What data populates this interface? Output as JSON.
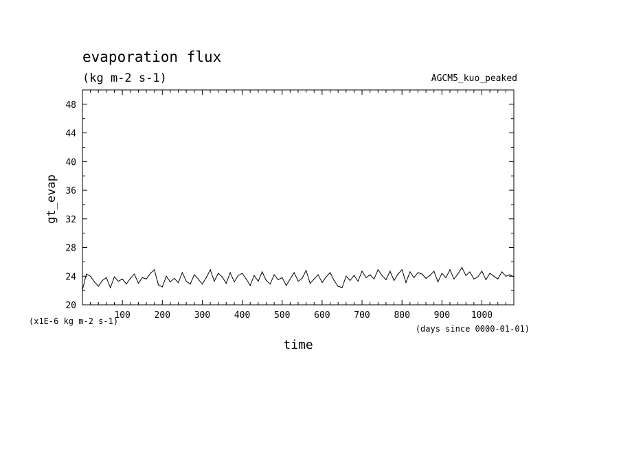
{
  "chart_data": {
    "type": "line",
    "title": "evaporation flux",
    "subtitle": "(kg m-2 s-1)",
    "experiment": "AGCM5_kuo_peaked",
    "xlabel": "time",
    "x_units": "(days since 0000-01-01)",
    "ylabel": "gt_evap",
    "y_units": "(x1E-6 kg m-2 s-1)",
    "xlim": [
      0,
      1080
    ],
    "ylim": [
      20,
      50
    ],
    "xticks": [
      100,
      200,
      300,
      400,
      500,
      600,
      700,
      800,
      900,
      1000
    ],
    "yticks": [
      20,
      24,
      28,
      32,
      36,
      40,
      44,
      48
    ],
    "grid": false,
    "series": [
      {
        "x": [
          0,
          10,
          20,
          30,
          40,
          50,
          60,
          70,
          80,
          90,
          100,
          110,
          120,
          130,
          140,
          150,
          160,
          170,
          180,
          190,
          200,
          210,
          220,
          230,
          240,
          250,
          260,
          270,
          280,
          290,
          300,
          310,
          320,
          330,
          340,
          350,
          360,
          370,
          380,
          390,
          400,
          410,
          420,
          430,
          440,
          450,
          460,
          470,
          480,
          490,
          500,
          510,
          520,
          530,
          540,
          550,
          560,
          570,
          580,
          590,
          600,
          610,
          620,
          630,
          640,
          650,
          660,
          670,
          680,
          690,
          700,
          710,
          720,
          730,
          740,
          750,
          760,
          770,
          780,
          790,
          800,
          810,
          820,
          830,
          840,
          850,
          860,
          870,
          880,
          890,
          900,
          910,
          920,
          930,
          940,
          950,
          960,
          970,
          980,
          990,
          1000,
          1010,
          1020,
          1030,
          1040,
          1050,
          1060,
          1070,
          1080
        ],
        "y": [
          22.1,
          24.3,
          24.0,
          23.2,
          22.6,
          23.4,
          23.8,
          22.4,
          23.9,
          23.3,
          23.6,
          22.9,
          23.7,
          24.3,
          23.0,
          23.8,
          23.6,
          24.4,
          24.9,
          22.8,
          22.5,
          24.0,
          23.2,
          23.7,
          23.1,
          24.5,
          23.3,
          22.9,
          24.2,
          23.6,
          22.9,
          23.8,
          24.9,
          23.3,
          24.4,
          23.9,
          23.0,
          24.5,
          23.2,
          24.1,
          24.4,
          23.6,
          22.7,
          24.1,
          23.3,
          24.6,
          23.4,
          22.9,
          24.2,
          23.5,
          23.8,
          22.7,
          23.6,
          24.5,
          23.3,
          23.7,
          24.8,
          23.0,
          23.6,
          24.2,
          23.1,
          23.9,
          24.5,
          23.4,
          22.6,
          22.4,
          24.0,
          23.4,
          24.1,
          23.3,
          24.7,
          23.8,
          24.2,
          23.6,
          24.9,
          24.1,
          23.5,
          24.7,
          23.4,
          24.3,
          24.9,
          23.1,
          24.6,
          23.8,
          24.5,
          24.3,
          23.7,
          24.1,
          24.7,
          23.2,
          24.4,
          23.8,
          24.9,
          23.6,
          24.3,
          25.2,
          24.1,
          24.6,
          23.6,
          23.9,
          24.7,
          23.5,
          24.4,
          24.0,
          23.6,
          24.6,
          24.0,
          24.2,
          23.9
        ]
      }
    ]
  }
}
